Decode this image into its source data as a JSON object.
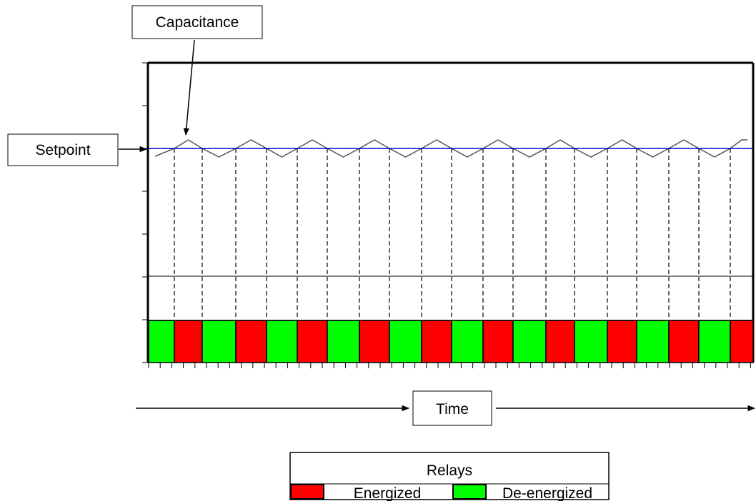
{
  "labels": {
    "capacitance": "Capacitance",
    "setpoint": "Setpoint",
    "time": "Time"
  },
  "legend": {
    "title": "Relays",
    "energized": "Energized",
    "de_energized": "De-energized"
  },
  "colors": {
    "energized": "#ff0000",
    "de_energized": "#00ff00",
    "setpoint_line": "#0000cc",
    "capacitance_wave": "#555555",
    "outline": "#000000"
  },
  "relay_states": [
    "de-energized",
    "energized",
    "de-energized",
    "energized",
    "de-energized",
    "energized",
    "de-energized",
    "energized",
    "de-energized",
    "energized",
    "de-energized",
    "energized",
    "de-energized",
    "energized",
    "de-energized",
    "energized",
    "de-energized",
    "energized",
    "de-energized",
    "energized"
  ]
}
